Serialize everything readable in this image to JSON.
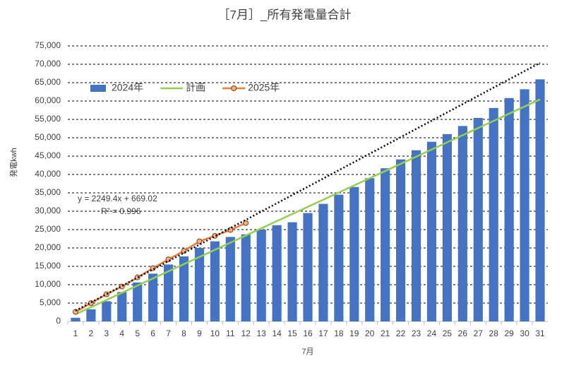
{
  "chart_data": {
    "type": "bar",
    "title": "［7月］_所有発電量合計",
    "y_label": "発電kwh",
    "x_label": "7月",
    "categories": [
      "1",
      "2",
      "3",
      "4",
      "5",
      "6",
      "7",
      "8",
      "9",
      "10",
      "11",
      "12",
      "13",
      "14",
      "15",
      "16",
      "17",
      "18",
      "19",
      "20",
      "21",
      "22",
      "23",
      "24",
      "25",
      "26",
      "27",
      "28",
      "29",
      "30",
      "31"
    ],
    "series": [
      {
        "name": "2024年",
        "type": "bar",
        "color": "#4472c4",
        "values": [
          1000,
          3300,
          5500,
          8000,
          10600,
          13000,
          15500,
          17700,
          20000,
          21800,
          23000,
          23700,
          25000,
          26200,
          27000,
          29500,
          32000,
          34500,
          36600,
          39000,
          41700,
          44100,
          46600,
          48900,
          51000,
          53200,
          55400,
          58100,
          60800,
          63200,
          65900
        ]
      },
      {
        "name": "計画",
        "type": "line",
        "color": "#92d050",
        "values": [
          1950,
          3900,
          5850,
          7800,
          9750,
          11700,
          13650,
          15600,
          17550,
          19500,
          21450,
          23400,
          25350,
          27300,
          29250,
          31200,
          33150,
          35100,
          37050,
          39000,
          40950,
          42900,
          44850,
          46800,
          48750,
          50700,
          52650,
          54600,
          56550,
          58500,
          60450
        ]
      },
      {
        "name": "2025年",
        "type": "line",
        "marker": true,
        "color": "#ed7d31",
        "values": [
          2600,
          5000,
          7400,
          9500,
          12000,
          14500,
          16900,
          19200,
          21800,
          23300,
          24900,
          26800,
          null,
          null,
          null,
          null,
          null,
          null,
          null,
          null,
          null,
          null,
          null,
          null,
          null,
          null,
          null,
          null,
          null,
          null,
          null
        ]
      }
    ],
    "trendline": {
      "x": [
        1,
        31
      ],
      "values": [
        2918,
        70400
      ],
      "color": "#000000"
    },
    "annotations": [
      "y = 2249.4x + 669.02",
      "R² = 0.996"
    ],
    "ylim": [
      0,
      75000
    ],
    "yticks": [
      0,
      {
        "value": 5000,
        "label": "5,000"
      },
      {
        "value": 10000,
        "label": "10,000"
      },
      {
        "value": 15000,
        "label": "15,000"
      },
      {
        "value": 20000,
        "label": "20,000"
      },
      {
        "value": 25000,
        "label": "25,000"
      },
      {
        "value": 30000,
        "label": "30,000"
      },
      {
        "value": 35000,
        "label": "35,000"
      },
      {
        "value": 40000,
        "label": "40,000"
      },
      {
        "value": 45000,
        "label": "45,000"
      },
      {
        "value": 50000,
        "label": "50,000"
      },
      {
        "value": 55000,
        "label": "55,000"
      },
      {
        "value": 60000,
        "label": "60,000"
      },
      {
        "value": 65000,
        "label": "65,000"
      },
      {
        "value": 70000,
        "label": "70,000"
      },
      {
        "value": 75000,
        "label": "75,000"
      }
    ],
    "grid": true,
    "legend": "upper left"
  }
}
